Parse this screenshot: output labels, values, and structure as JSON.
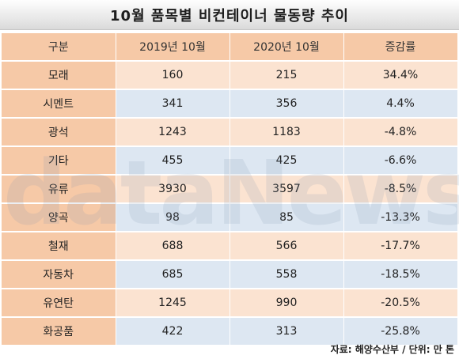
{
  "title": "10월 품목별 비컨테이너 물동량 추이",
  "headers": [
    "구분",
    "2019년 10월",
    "2020년 10월",
    "증감률"
  ],
  "rows": [
    {
      "category": "모래",
      "y2019": "160",
      "y2020": "215",
      "change": "34.4%"
    },
    {
      "category": "시멘트",
      "y2019": "341",
      "y2020": "356",
      "change": "4.4%"
    },
    {
      "category": "광석",
      "y2019": "1243",
      "y2020": "1183",
      "change": "-4.8%"
    },
    {
      "category": "기타",
      "y2019": "455",
      "y2020": "425",
      "change": "-6.6%"
    },
    {
      "category": "유류",
      "y2019": "3930",
      "y2020": "3597",
      "change": "-8.5%"
    },
    {
      "category": "양곡",
      "y2019": "98",
      "y2020": "85",
      "change": "-13.3%"
    },
    {
      "category": "철재",
      "y2019": "688",
      "y2020": "566",
      "change": "-17.7%"
    },
    {
      "category": "자동차",
      "y2019": "685",
      "y2020": "558",
      "change": "-18.5%"
    },
    {
      "category": "유연탄",
      "y2019": "1245",
      "y2020": "990",
      "change": "-20.5%"
    },
    {
      "category": "화공품",
      "y2019": "422",
      "y2020": "313",
      "change": "-25.8%"
    }
  ],
  "watermark": "dataNews",
  "source": "자료: 해양수산부 / 단위: 만 톤",
  "colors": {
    "header_bg": "#f6c9a7",
    "row_odd_bg": "#fbe3d1",
    "row_even_bg": "#dde7f2"
  }
}
